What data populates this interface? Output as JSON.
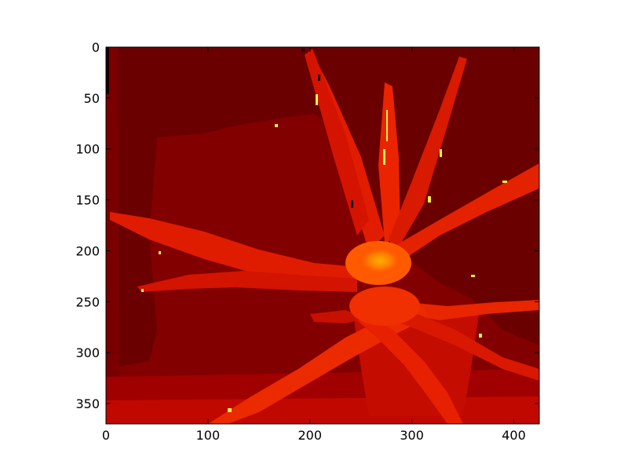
{
  "chart_data": {
    "type": "heatmap",
    "title": "",
    "xlabel": "",
    "ylabel": "",
    "colormap": "hot",
    "xlim": [
      0,
      425
    ],
    "ylim": [
      370,
      0
    ],
    "x_ticks": [
      0,
      100,
      200,
      300,
      400
    ],
    "y_ticks": [
      0,
      50,
      100,
      150,
      200,
      250,
      300,
      350
    ],
    "x_tick_labels": [
      "0",
      "100",
      "200",
      "300",
      "400"
    ],
    "y_tick_labels": [
      "0",
      "50",
      "100",
      "150",
      "200",
      "250",
      "300",
      "350"
    ],
    "image_shape": [
      370,
      425
    ],
    "background_color": "#6b0000",
    "subject": "depth image of a spiky aloe plant",
    "region_colors": {
      "far_background": "#6b0000",
      "mid_background": "#8a0000",
      "near_leaves": "#e82400",
      "nearest_center": "#ff8800",
      "highlights": "#ffee44"
    },
    "colorbar": false,
    "grid": false
  }
}
